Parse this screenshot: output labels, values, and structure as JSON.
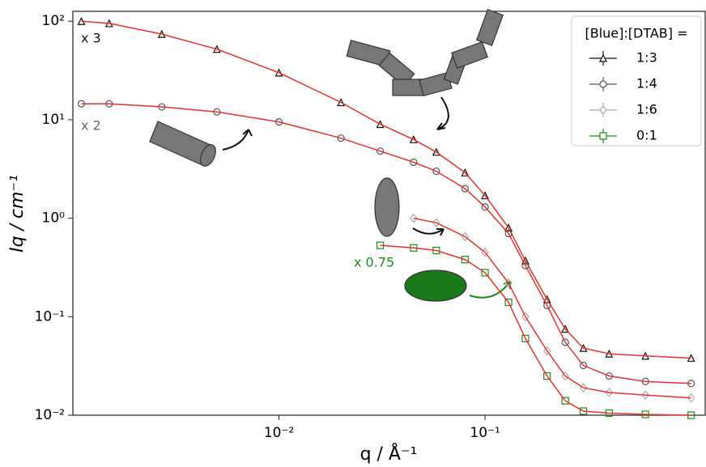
{
  "chart_data": {
    "type": "scatter",
    "x_label": "q / Å⁻¹",
    "y_label": "Iq / cm⁻¹",
    "log_x": true,
    "log_y": true,
    "xlim": [
      0.001,
      1.17
    ],
    "ylim": [
      0.01,
      126
    ],
    "xticks": [
      {
        "value": 0.01,
        "label": "10⁻²"
      },
      {
        "value": 0.1,
        "label": "10⁻¹"
      }
    ],
    "yticks": [
      {
        "value": 0.01,
        "label": "10⁻²"
      },
      {
        "value": 0.1,
        "label": "10⁻¹"
      },
      {
        "value": 1,
        "label": "10⁰"
      },
      {
        "value": 10,
        "label": "10¹"
      },
      {
        "value": 100,
        "label": "10²"
      }
    ],
    "x": [
      0.0011,
      0.0015,
      0.0027,
      0.005,
      0.01,
      0.02,
      0.031,
      0.045,
      0.058,
      0.08,
      0.1,
      0.13,
      0.157,
      0.2,
      0.245,
      0.3,
      0.4,
      0.6,
      1.0
    ],
    "fit_color": "#e8312a",
    "legend_title": "[Blue]:[DTAB] =",
    "legend_position": "upper right",
    "series": [
      {
        "name": "1:3",
        "color": "#111111",
        "marker": "triangle",
        "values": [
          100,
          95,
          74,
          52,
          30,
          15,
          9,
          6.3,
          4.7,
          2.9,
          1.7,
          0.8,
          0.37,
          0.15,
          0.075,
          0.048,
          0.042,
          0.04,
          0.038
        ]
      },
      {
        "name": "1:4",
        "color": "#555555",
        "marker": "circle",
        "values": [
          14.5,
          14.5,
          13.5,
          12,
          9.5,
          6.5,
          4.8,
          3.7,
          3.0,
          2.0,
          1.3,
          0.7,
          0.33,
          0.13,
          0.055,
          0.032,
          0.025,
          0.022,
          0.021
        ]
      },
      {
        "name": "1:6",
        "color": "#aaaaaa",
        "marker": "diamond",
        "values": [
          null,
          null,
          null,
          null,
          null,
          null,
          null,
          1.0,
          0.9,
          0.65,
          0.45,
          0.22,
          0.1,
          0.045,
          0.025,
          0.019,
          0.017,
          0.016,
          0.015
        ]
      },
      {
        "name": "0:1",
        "color": "#1a8a1a",
        "marker": "square",
        "values": [
          null,
          null,
          null,
          null,
          null,
          null,
          0.53,
          0.5,
          0.47,
          0.38,
          0.28,
          0.14,
          0.06,
          0.025,
          0.014,
          0.011,
          0.0105,
          0.0102,
          0.01
        ]
      }
    ],
    "annotations": [
      {
        "text": "x 3",
        "color": "#111111"
      },
      {
        "text": "x 2",
        "color": "#666666"
      },
      {
        "text": "x 0.75",
        "color": "#1a8a1a"
      }
    ]
  }
}
